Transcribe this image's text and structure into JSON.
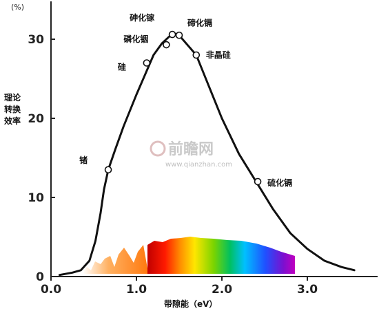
{
  "unit_label": "(%)",
  "watermark": {
    "name": "前瞻网",
    "site": "www.qianzhan.com"
  },
  "chart_data": {
    "type": "line",
    "title": "",
    "xlabel": "带隙能（eV）",
    "ylabel_lines": [
      "理论",
      "转换",
      "效率"
    ],
    "xlim": [
      0.0,
      3.5
    ],
    "ylim": [
      0,
      35
    ],
    "xticks": [
      {
        "v": 0.0,
        "label": "0.0"
      },
      {
        "v": 1.0,
        "label": "1.0"
      },
      {
        "v": 2.0,
        "label": "2.0"
      },
      {
        "v": 3.0,
        "label": "3.0"
      }
    ],
    "yticks": [
      {
        "v": 0,
        "label": "0"
      },
      {
        "v": 10,
        "label": "10"
      },
      {
        "v": 20,
        "label": "20"
      },
      {
        "v": 30,
        "label": "30"
      }
    ],
    "grid": false,
    "series": [
      {
        "color": "#111111",
        "points": [
          [
            0.1,
            0.2
          ],
          [
            0.25,
            0.5
          ],
          [
            0.35,
            0.8
          ],
          [
            0.45,
            2.0
          ],
          [
            0.52,
            4.5
          ],
          [
            0.58,
            8.0
          ],
          [
            0.62,
            11.0
          ],
          [
            0.67,
            13.5
          ],
          [
            0.75,
            16.0
          ],
          [
            0.85,
            19.0
          ],
          [
            1.0,
            23.0
          ],
          [
            1.1,
            25.5
          ],
          [
            1.2,
            28.0
          ],
          [
            1.3,
            29.5
          ],
          [
            1.4,
            30.5
          ],
          [
            1.45,
            30.7
          ],
          [
            1.5,
            30.5
          ],
          [
            1.58,
            29.5
          ],
          [
            1.7,
            28.0
          ],
          [
            1.85,
            24.0
          ],
          [
            2.0,
            20.0
          ],
          [
            2.2,
            15.5
          ],
          [
            2.4,
            12.0
          ],
          [
            2.6,
            8.5
          ],
          [
            2.8,
            5.5
          ],
          [
            3.0,
            3.5
          ],
          [
            3.2,
            2.0
          ],
          [
            3.4,
            1.2
          ],
          [
            3.55,
            0.8
          ]
        ]
      }
    ],
    "annotations": [
      {
        "label": "锗",
        "x": 0.67,
        "y": 13.5,
        "side": "left"
      },
      {
        "label": "硅",
        "x": 1.12,
        "y": 27.0,
        "side": "left"
      },
      {
        "label": "磷化铟",
        "x": 1.35,
        "y": 29.3,
        "side": "left"
      },
      {
        "label": "砷化镓",
        "x": 1.42,
        "y": 30.6,
        "side": "left"
      },
      {
        "label": "碲化镉",
        "x": 1.5,
        "y": 30.5,
        "side": "right"
      },
      {
        "label": "非晶硅",
        "x": 1.7,
        "y": 28.0,
        "side": "right"
      },
      {
        "label": "硫化镉",
        "x": 2.42,
        "y": 12.0,
        "side": "right"
      }
    ]
  }
}
